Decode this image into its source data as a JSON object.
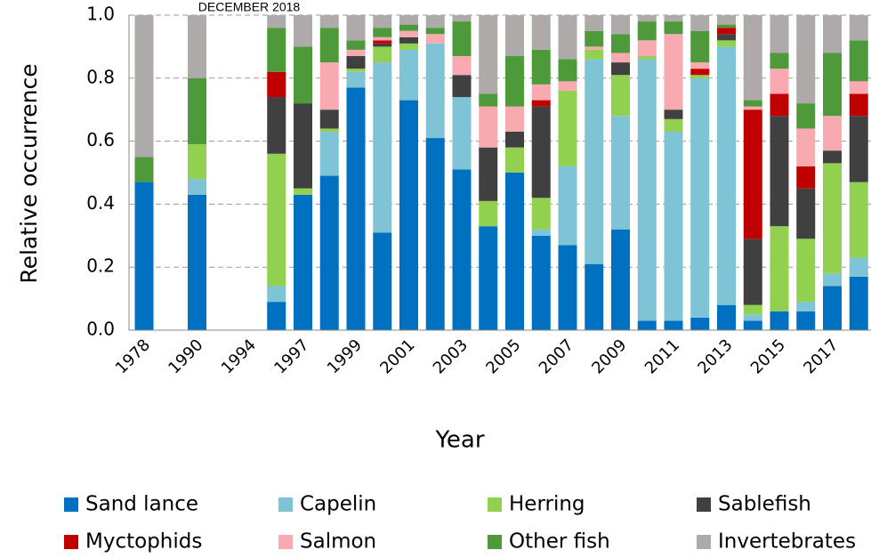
{
  "chart_data": {
    "type": "stacked_bar",
    "title": "DECEMBER 2018",
    "x_label": "Year",
    "y_label": "Relative occurrence",
    "categories": [
      "1978",
      null,
      "1990",
      null,
      "1994",
      null,
      "1997",
      null,
      "1999",
      null,
      "2001",
      null,
      "2003",
      null,
      "2005",
      null,
      "2007",
      null,
      "2009",
      null,
      "2011",
      null,
      "2013",
      null,
      "2015",
      null,
      "2017",
      null
    ],
    "series": [
      {
        "name": "Sand lance",
        "color": "#0070c0",
        "values": [
          0.47,
          null,
          0.43,
          null,
          null,
          0.09,
          0.43,
          0.49,
          0.77,
          0.31,
          0.73,
          0.61,
          0.51,
          0.33,
          0.5,
          0.3,
          0.27,
          0.21,
          0.32,
          0.03,
          0.03,
          0.04,
          0.08,
          0.03,
          0.06,
          0.06,
          0.14,
          0.17
        ]
      },
      {
        "name": "Capelin",
        "color": "#7fc4d6",
        "values": [
          0,
          null,
          0.05,
          null,
          null,
          0.05,
          0,
          0.14,
          0.05,
          0.54,
          0.16,
          0.3,
          0.23,
          0,
          0,
          0.02,
          0.25,
          0.65,
          0.36,
          0.83,
          0.6,
          0.76,
          0.82,
          0.02,
          0,
          0.03,
          0.04,
          0.06
        ]
      },
      {
        "name": "Herring",
        "color": "#92d050",
        "values": [
          0,
          null,
          0.11,
          null,
          null,
          0.42,
          0.02,
          0.01,
          0.01,
          0.05,
          0.02,
          0,
          0,
          0.08,
          0.08,
          0.1,
          0.24,
          0.03,
          0.13,
          0.01,
          0.04,
          0.01,
          0.02,
          0.03,
          0.27,
          0.2,
          0.35,
          0.24
        ]
      },
      {
        "name": "Sablefish",
        "color": "#404040",
        "values": [
          0,
          null,
          0,
          null,
          null,
          0.18,
          0.27,
          0.06,
          0.04,
          0.01,
          0.02,
          0,
          0.07,
          0.17,
          0.05,
          0.29,
          0,
          0,
          0.04,
          0,
          0.03,
          0,
          0.02,
          0.21,
          0.35,
          0.16,
          0.04,
          0.21
        ]
      },
      {
        "name": "Myctophids",
        "color": "#c00000",
        "values": [
          0,
          null,
          0,
          null,
          null,
          0.08,
          0,
          0,
          0,
          0.01,
          0,
          0,
          0,
          0,
          0,
          0.02,
          0,
          0,
          0,
          0,
          0,
          0.02,
          0.02,
          0.41,
          0.07,
          0.07,
          0,
          0.07
        ]
      },
      {
        "name": "Salmon",
        "color": "#f9a9b0",
        "values": [
          0,
          null,
          0,
          null,
          null,
          0,
          0,
          0.15,
          0.02,
          0.01,
          0.02,
          0.03,
          0.06,
          0.13,
          0.08,
          0.05,
          0.03,
          0.01,
          0.03,
          0.05,
          0.24,
          0.02,
          0,
          0.01,
          0.08,
          0.12,
          0.11,
          0.04
        ]
      },
      {
        "name": "Other fish",
        "color": "#4e9a3a",
        "values": [
          0.08,
          null,
          0.21,
          null,
          null,
          0.14,
          0.18,
          0.11,
          0.03,
          0.03,
          0.02,
          0.02,
          0.11,
          0.04,
          0.16,
          0.11,
          0.07,
          0.05,
          0.06,
          0.06,
          0.04,
          0.1,
          0.01,
          0.02,
          0.05,
          0.08,
          0.2,
          0.13
        ]
      },
      {
        "name": "Invertebrates",
        "color": "#aeaaaa",
        "values": [
          0.45,
          null,
          0.2,
          null,
          null,
          0.04,
          0.1,
          0.04,
          0.08,
          0.04,
          0.03,
          0.04,
          0.02,
          0.25,
          0.13,
          0.11,
          0.14,
          0.05,
          0.06,
          0.02,
          0.02,
          0.05,
          0.03,
          0.27,
          0.12,
          0.28,
          0.12,
          0.08
        ]
      }
    ],
    "ylim": [
      0,
      1
    ],
    "yticks": [
      {
        "value": 0,
        "label": "0.0"
      },
      0.2,
      0.4,
      0.6,
      0.8,
      {
        "value": 1,
        "label": "1.0"
      }
    ],
    "grid": true
  }
}
